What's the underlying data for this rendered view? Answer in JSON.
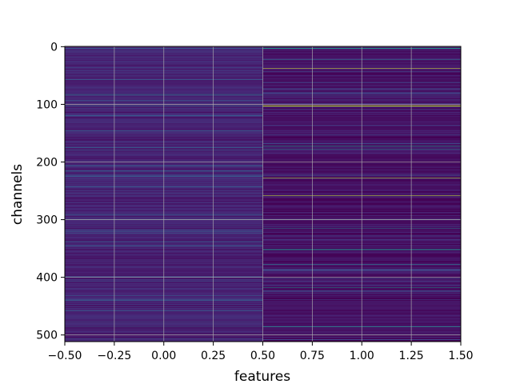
{
  "chart_data": {
    "type": "heatmap",
    "colormap": "viridis",
    "xlabel": "features",
    "ylabel": "channels",
    "title": "",
    "xlim": [
      -0.5,
      1.5
    ],
    "ylim": [
      511.5,
      -0.5
    ],
    "grid": true,
    "x_ticks": [
      -0.5,
      -0.25,
      0.0,
      0.25,
      0.5,
      0.75,
      1.0,
      1.25,
      1.5
    ],
    "x_tick_labels": [
      "−0.50",
      "−0.25",
      "0.00",
      "0.25",
      "0.50",
      "0.75",
      "1.00",
      "1.25",
      "1.50"
    ],
    "y_ticks": [
      0,
      100,
      200,
      300,
      400,
      500
    ],
    "y_tick_labels": [
      "0",
      "100",
      "200",
      "300",
      "400",
      "500"
    ],
    "n_channels": 512,
    "features": [
      0,
      1
    ],
    "value_range": [
      0,
      1
    ],
    "background_level": {
      "feature_0": 0.1,
      "feature_1": 0.05
    },
    "highlights": [
      {
        "feature": 0,
        "channel": 83,
        "value": 0.45
      },
      {
        "feature": 0,
        "channel": 120,
        "value": 0.28
      },
      {
        "feature": 0,
        "channel": 310,
        "value": 0.25
      },
      {
        "feature": 1,
        "channel": 3,
        "value": 0.5
      },
      {
        "feature": 1,
        "channel": 22,
        "value": 0.4
      },
      {
        "feature": 1,
        "channel": 38,
        "value": 0.95
      },
      {
        "feature": 1,
        "channel": 103,
        "value": 0.9
      },
      {
        "feature": 1,
        "channel": 172,
        "value": 0.55
      },
      {
        "feature": 1,
        "channel": 178,
        "value": 0.45
      },
      {
        "feature": 1,
        "channel": 228,
        "value": 0.9
      },
      {
        "feature": 1,
        "channel": 258,
        "value": 0.92
      },
      {
        "feature": 1,
        "channel": 315,
        "value": 0.4
      },
      {
        "feature": 1,
        "channel": 352,
        "value": 0.5
      },
      {
        "feature": 1,
        "channel": 378,
        "value": 0.45
      },
      {
        "feature": 1,
        "channel": 418,
        "value": 0.5
      },
      {
        "feature": 1,
        "channel": 486,
        "value": 0.55
      }
    ]
  }
}
